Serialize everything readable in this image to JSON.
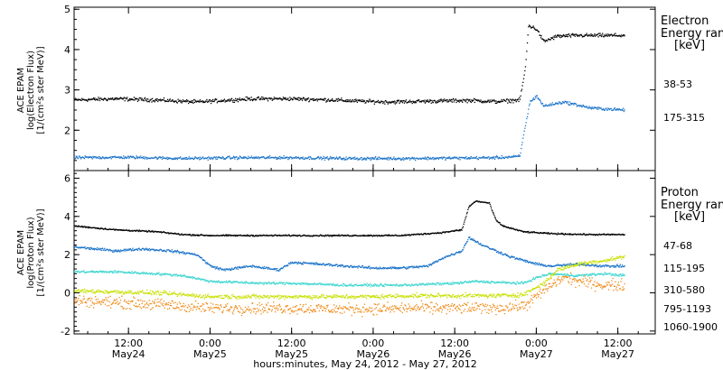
{
  "figure": {
    "xlabel": "hours:minutes, May 24, 2012 - May 27, 2012",
    "x_ticks": [
      {
        "h": 12,
        "t1": "12:00",
        "t2": "May24"
      },
      {
        "h": 24,
        "t1": "0:00",
        "t2": "May25"
      },
      {
        "h": 36,
        "t1": "12:00",
        "t2": "May25"
      },
      {
        "h": 48,
        "t1": "0:00",
        "t2": "May26"
      },
      {
        "h": 60,
        "t1": "12:00",
        "t2": "May26"
      },
      {
        "h": 72,
        "t1": "0:00",
        "t2": "May27"
      },
      {
        "h": 84,
        "t1": "12:00",
        "t2": "May27"
      }
    ]
  },
  "chart_data": [
    {
      "type": "scatter",
      "panel": "electron",
      "ylabel_lines": [
        "ACE EPAM",
        "log(Electron Flux)",
        "[1/(cm²s ster MeV)]"
      ],
      "xlim_hours": [
        4,
        89.5
      ],
      "ylim": [
        1.0,
        5.05
      ],
      "y_ticks": [
        2,
        3,
        4,
        5
      ],
      "x_units": "hours since May 24, 2012 00:00",
      "legend_title": [
        "Electron",
        "Energy ran",
        "[keV]"
      ],
      "series": [
        {
          "name": "38-53",
          "color": "#000000",
          "noise": 0.05,
          "points": [
            [
              4,
              2.75
            ],
            [
              10,
              2.78
            ],
            [
              16,
              2.75
            ],
            [
              22,
              2.7
            ],
            [
              26,
              2.74
            ],
            [
              30,
              2.78
            ],
            [
              36,
              2.78
            ],
            [
              42,
              2.75
            ],
            [
              46,
              2.72
            ],
            [
              50,
              2.7
            ],
            [
              56,
              2.72
            ],
            [
              62,
              2.74
            ],
            [
              66,
              2.71
            ],
            [
              69.5,
              2.75
            ],
            [
              70.3,
              3.5
            ],
            [
              70.8,
              4.6
            ],
            [
              72,
              4.5
            ],
            [
              73,
              4.2
            ],
            [
              75,
              4.33
            ],
            [
              78,
              4.35
            ],
            [
              82,
              4.35
            ],
            [
              85,
              4.35
            ]
          ]
        },
        {
          "name": "175-315",
          "color": "#1a73c9",
          "noise": 0.04,
          "points": [
            [
              4,
              1.32
            ],
            [
              12,
              1.33
            ],
            [
              20,
              1.3
            ],
            [
              28,
              1.32
            ],
            [
              36,
              1.32
            ],
            [
              44,
              1.3
            ],
            [
              52,
              1.3
            ],
            [
              60,
              1.31
            ],
            [
              66,
              1.32
            ],
            [
              69.5,
              1.35
            ],
            [
              70.3,
              2.1
            ],
            [
              71,
              2.7
            ],
            [
              72,
              2.85
            ],
            [
              73,
              2.6
            ],
            [
              76,
              2.7
            ],
            [
              80,
              2.55
            ],
            [
              85,
              2.5
            ]
          ]
        }
      ]
    },
    {
      "type": "scatter",
      "panel": "proton",
      "ylabel_lines": [
        "ACE EPAM",
        "log(Proton Flux)",
        "[1/(cm²s ster MeV)]"
      ],
      "xlim_hours": [
        4,
        89.5
      ],
      "ylim": [
        -2.15,
        6.4
      ],
      "y_ticks": [
        -2,
        0,
        2,
        4,
        6
      ],
      "x_units": "hours since May 24, 2012 00:00",
      "legend_title": [
        "Proton",
        "Energy ran",
        "[keV]"
      ],
      "series": [
        {
          "name": "47-68",
          "color": "#000000",
          "noise": 0.04,
          "points": [
            [
              4,
              3.5
            ],
            [
              10,
              3.3
            ],
            [
              16,
              3.2
            ],
            [
              20,
              3.05
            ],
            [
              24,
              3.0
            ],
            [
              30,
              3.0
            ],
            [
              36,
              3.0
            ],
            [
              42,
              3.0
            ],
            [
              48,
              3.0
            ],
            [
              52,
              3.0
            ],
            [
              58,
              3.15
            ],
            [
              61,
              3.3
            ],
            [
              62,
              4.5
            ],
            [
              63,
              4.8
            ],
            [
              65,
              4.7
            ],
            [
              66,
              3.8
            ],
            [
              67,
              3.5
            ],
            [
              68,
              3.4
            ],
            [
              70,
              3.2
            ],
            [
              74,
              3.1
            ],
            [
              80,
              3.05
            ],
            [
              85,
              3.05
            ]
          ]
        },
        {
          "name": "115-195",
          "color": "#1a73c9",
          "noise": 0.07,
          "points": [
            [
              4,
              2.4
            ],
            [
              10,
              2.2
            ],
            [
              14,
              2.3
            ],
            [
              18,
              2.2
            ],
            [
              22,
              2.0
            ],
            [
              24,
              1.4
            ],
            [
              26,
              1.2
            ],
            [
              30,
              1.4
            ],
            [
              34,
              1.2
            ],
            [
              36,
              1.6
            ],
            [
              40,
              1.5
            ],
            [
              44,
              1.4
            ],
            [
              48,
              1.3
            ],
            [
              52,
              1.3
            ],
            [
              56,
              1.4
            ],
            [
              58,
              1.8
            ],
            [
              61,
              2.2
            ],
            [
              62,
              2.9
            ],
            [
              63,
              2.7
            ],
            [
              64,
              2.5
            ],
            [
              66,
              2.2
            ],
            [
              68,
              1.9
            ],
            [
              70,
              1.7
            ],
            [
              72,
              1.5
            ],
            [
              74,
              1.4
            ],
            [
              78,
              1.5
            ],
            [
              82,
              1.4
            ],
            [
              85,
              1.4
            ]
          ]
        },
        {
          "name": "310-580",
          "color": "#3fd6cf",
          "noise": 0.07,
          "points": [
            [
              4,
              1.1
            ],
            [
              10,
              1.1
            ],
            [
              16,
              1.0
            ],
            [
              20,
              0.9
            ],
            [
              24,
              0.6
            ],
            [
              28,
              0.55
            ],
            [
              32,
              0.5
            ],
            [
              36,
              0.5
            ],
            [
              40,
              0.45
            ],
            [
              44,
              0.4
            ],
            [
              48,
              0.4
            ],
            [
              52,
              0.4
            ],
            [
              56,
              0.45
            ],
            [
              60,
              0.5
            ],
            [
              63,
              0.6
            ],
            [
              66,
              0.55
            ],
            [
              70,
              0.5
            ],
            [
              72,
              0.8
            ],
            [
              74,
              1.0
            ],
            [
              78,
              0.9
            ],
            [
              82,
              1.0
            ],
            [
              85,
              0.9
            ]
          ]
        },
        {
          "name": "795-1193",
          "color": "#c7e000",
          "noise": 0.12,
          "points": [
            [
              4,
              0.1
            ],
            [
              10,
              0.05
            ],
            [
              16,
              0.0
            ],
            [
              20,
              -0.1
            ],
            [
              24,
              -0.2
            ],
            [
              30,
              -0.2
            ],
            [
              36,
              -0.2
            ],
            [
              42,
              -0.2
            ],
            [
              48,
              -0.2
            ],
            [
              54,
              -0.15
            ],
            [
              60,
              -0.15
            ],
            [
              66,
              -0.15
            ],
            [
              70,
              -0.1
            ],
            [
              73,
              0.5
            ],
            [
              75,
              1.2
            ],
            [
              78,
              1.5
            ],
            [
              82,
              1.7
            ],
            [
              85,
              1.9
            ]
          ]
        },
        {
          "name": "1060-1900",
          "color": "#ef8a17",
          "noise": 0.32,
          "points": [
            [
              4,
              -0.4
            ],
            [
              10,
              -0.5
            ],
            [
              16,
              -0.6
            ],
            [
              20,
              -0.7
            ],
            [
              24,
              -0.8
            ],
            [
              30,
              -0.8
            ],
            [
              36,
              -0.8
            ],
            [
              42,
              -0.85
            ],
            [
              48,
              -0.85
            ],
            [
              54,
              -0.8
            ],
            [
              60,
              -0.8
            ],
            [
              66,
              -0.8
            ],
            [
              70,
              -0.7
            ],
            [
              72,
              -0.2
            ],
            [
              74,
              0.4
            ],
            [
              76,
              0.8
            ],
            [
              78,
              0.6
            ],
            [
              82,
              0.4
            ],
            [
              85,
              0.4
            ]
          ]
        }
      ]
    }
  ]
}
